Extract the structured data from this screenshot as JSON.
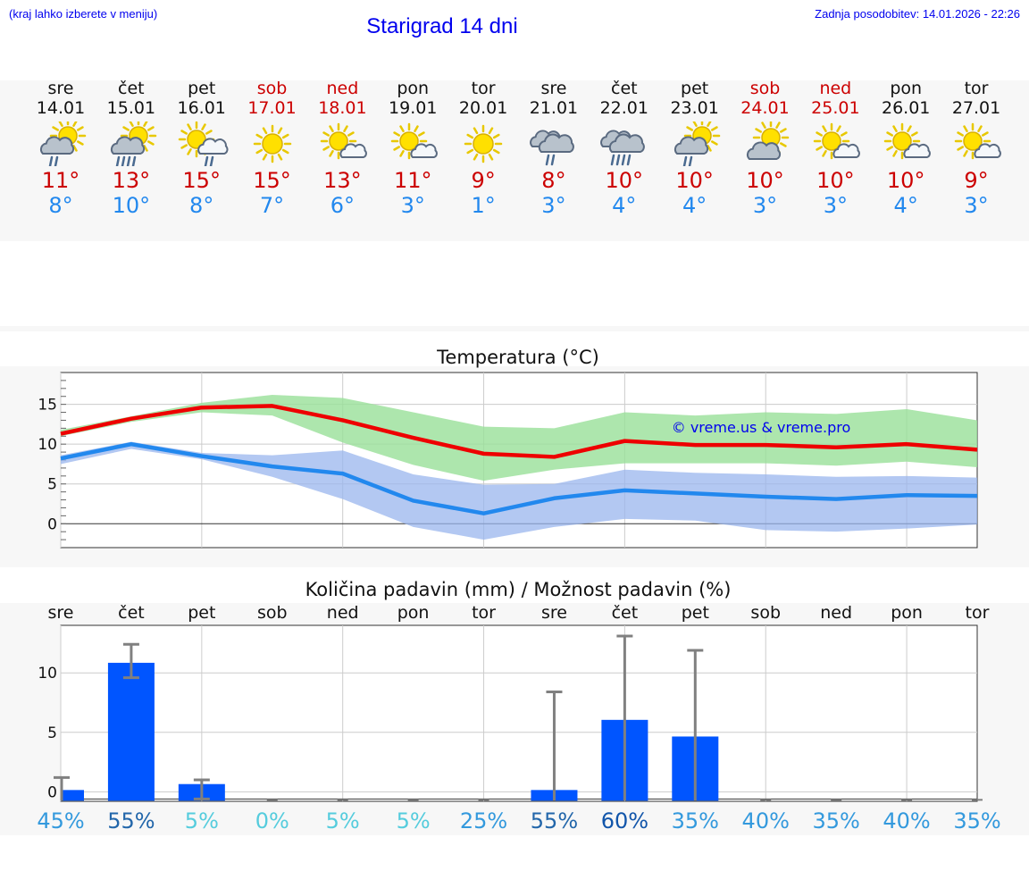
{
  "header": {
    "hint": "(kraj lahko izberete v meniju)",
    "title": "Starigrad 14 dni",
    "updated": "Zadnja posodobitev: 14.01.2026 - 22:26"
  },
  "days": [
    {
      "name": "sre",
      "date": "14.01",
      "weekend": false,
      "icon": "partly-sunny-rain-icon",
      "hi": "11°",
      "lo": "8°"
    },
    {
      "name": "čet",
      "date": "15.01",
      "weekend": false,
      "icon": "partly-sunny-heavy-rain-icon",
      "hi": "13°",
      "lo": "10°"
    },
    {
      "name": "pet",
      "date": "16.01",
      "weekend": false,
      "icon": "sun-cloud-rain-icon",
      "hi": "15°",
      "lo": "8°"
    },
    {
      "name": "sob",
      "date": "17.01",
      "weekend": true,
      "icon": "sun-icon",
      "hi": "15°",
      "lo": "7°"
    },
    {
      "name": "ned",
      "date": "18.01",
      "weekend": true,
      "icon": "sun-small-cloud-icon",
      "hi": "13°",
      "lo": "6°"
    },
    {
      "name": "pon",
      "date": "19.01",
      "weekend": false,
      "icon": "sun-small-cloud-icon",
      "hi": "11°",
      "lo": "3°"
    },
    {
      "name": "tor",
      "date": "20.01",
      "weekend": false,
      "icon": "sun-icon",
      "hi": "9°",
      "lo": "1°"
    },
    {
      "name": "sre",
      "date": "21.01",
      "weekend": false,
      "icon": "cloud-rain-icon",
      "hi": "8°",
      "lo": "3°"
    },
    {
      "name": "čet",
      "date": "22.01",
      "weekend": false,
      "icon": "cloud-heavy-rain-icon",
      "hi": "10°",
      "lo": "4°"
    },
    {
      "name": "pet",
      "date": "23.01",
      "weekend": false,
      "icon": "partly-sunny-rain-icon",
      "hi": "10°",
      "lo": "4°"
    },
    {
      "name": "sob",
      "date": "24.01",
      "weekend": true,
      "icon": "partly-sunny-icon",
      "hi": "10°",
      "lo": "3°"
    },
    {
      "name": "ned",
      "date": "25.01",
      "weekend": true,
      "icon": "sun-small-cloud-icon",
      "hi": "10°",
      "lo": "3°"
    },
    {
      "name": "pon",
      "date": "26.01",
      "weekend": false,
      "icon": "sun-small-cloud-icon",
      "hi": "10°",
      "lo": "4°"
    },
    {
      "name": "tor",
      "date": "27.01",
      "weekend": false,
      "icon": "sun-small-cloud-icon",
      "hi": "9°",
      "lo": "3°"
    }
  ],
  "colors": {
    "high": "#ee0000",
    "low": "#2288ee",
    "high_band": "#99e099",
    "low_band": "#99b6ee",
    "bar": "#0055ff",
    "err": "#808080"
  },
  "chart_data": [
    {
      "type": "line",
      "title": "Temperatura (°C)",
      "watermark": "© vreme.us & vreme.pro",
      "x": [
        0,
        1,
        2,
        3,
        4,
        5,
        6,
        7,
        8,
        9,
        10,
        11,
        12,
        13
      ],
      "ylim": [
        -3,
        19
      ],
      "yticks": [
        0,
        5,
        10,
        15
      ],
      "series": [
        {
          "name": "max",
          "values": [
            11.3,
            13.2,
            14.6,
            14.8,
            13.0,
            10.8,
            8.8,
            8.4,
            10.4,
            9.9,
            9.9,
            9.6,
            10.0,
            9.3
          ]
        },
        {
          "name": "min",
          "values": [
            8.2,
            10.0,
            8.5,
            7.2,
            6.3,
            2.9,
            1.3,
            3.2,
            4.2,
            3.8,
            3.4,
            3.1,
            3.6,
            3.5
          ]
        }
      ],
      "bands": [
        {
          "name": "max-range",
          "upper": [
            11.8,
            13.5,
            15.2,
            16.2,
            15.8,
            14.0,
            12.2,
            12.0,
            14.0,
            13.6,
            14.0,
            13.8,
            14.4,
            13.0
          ],
          "lower": [
            11.0,
            12.8,
            14.0,
            13.6,
            10.2,
            7.4,
            5.4,
            6.8,
            7.6,
            7.6,
            7.6,
            7.3,
            7.8,
            7.1
          ]
        },
        {
          "name": "min-range",
          "upper": [
            8.6,
            10.3,
            8.9,
            8.6,
            9.2,
            6.2,
            4.9,
            5.0,
            6.8,
            6.4,
            6.2,
            5.9,
            6.0,
            5.8
          ],
          "lower": [
            7.5,
            9.4,
            8.1,
            5.9,
            3.1,
            -0.4,
            -2.0,
            -0.4,
            0.6,
            0.4,
            -0.8,
            -1.0,
            -0.6,
            -0.1
          ]
        }
      ]
    },
    {
      "type": "bar",
      "title": "Količina padavin (mm) / Možnost padavin (%)",
      "categories": [
        "sre",
        "čet",
        "pet",
        "sob",
        "ned",
        "pon",
        "tor",
        "sre",
        "čet",
        "pet",
        "sob",
        "ned",
        "pon",
        "tor"
      ],
      "ylim": [
        -0.8,
        14
      ],
      "yticks": [
        0,
        5,
        10
      ],
      "values": [
        0.3,
        11.0,
        0.8,
        0.0,
        0.0,
        0.0,
        0.0,
        0.3,
        6.2,
        4.8,
        0.0,
        0.0,
        0.0,
        0.0
      ],
      "err_low": [
        0.0,
        9.6,
        0.0,
        0.0,
        0.0,
        0.0,
        0.0,
        0.0,
        0.0,
        0.0,
        0.0,
        0.0,
        0.0,
        0.0
      ],
      "err_high": [
        1.2,
        12.4,
        1.0,
        0.0,
        0.0,
        0.0,
        0.0,
        8.4,
        13.1,
        11.9,
        0.0,
        0.0,
        0.0,
        0.0
      ],
      "probability": [
        "45%",
        "55%",
        "5%",
        "0%",
        "5%",
        "5%",
        "25%",
        "55%",
        "60%",
        "35%",
        "40%",
        "35%",
        "40%",
        "35%"
      ],
      "probability_colors": [
        "#3399dd",
        "#2266aa",
        "#55ccdd",
        "#55ccdd",
        "#55ccdd",
        "#55ccdd",
        "#3399dd",
        "#2266aa",
        "#1155aa",
        "#3399dd",
        "#3399dd",
        "#3399dd",
        "#3399dd",
        "#3399dd"
      ]
    }
  ]
}
